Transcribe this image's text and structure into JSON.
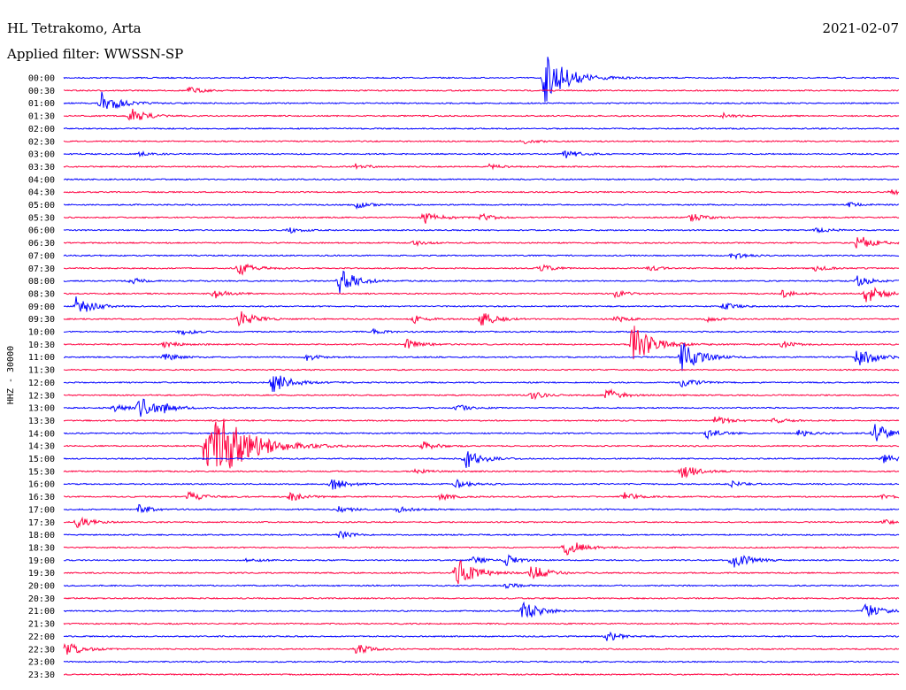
{
  "header": {
    "station": "HL Tetrakomo, Arta",
    "date": "2021-02-07",
    "filter": "Applied filter: WWSSN-SP"
  },
  "chart_data": {
    "type": "line",
    "subtype": "helicorder",
    "ylabel": "HHZ - 30000",
    "colors": [
      "#0000ff",
      "#ff0040"
    ],
    "rows": [
      {
        "label": "00:00",
        "events": [
          [
            0.575,
            30
          ]
        ]
      },
      {
        "label": "00:30",
        "events": [
          [
            0.15,
            4
          ]
        ]
      },
      {
        "label": "01:00",
        "events": [
          [
            0.045,
            14
          ]
        ]
      },
      {
        "label": "01:30",
        "events": [
          [
            0.08,
            9
          ],
          [
            0.79,
            3
          ]
        ]
      },
      {
        "label": "02:00",
        "events": []
      },
      {
        "label": "02:30",
        "events": [
          [
            0.55,
            3
          ]
        ]
      },
      {
        "label": "03:00",
        "events": [
          [
            0.09,
            3
          ],
          [
            0.6,
            5
          ]
        ]
      },
      {
        "label": "03:30",
        "events": [
          [
            0.35,
            4
          ],
          [
            0.51,
            3
          ]
        ]
      },
      {
        "label": "04:00",
        "events": []
      },
      {
        "label": "04:30",
        "events": [
          [
            0.99,
            3
          ]
        ]
      },
      {
        "label": "05:00",
        "events": [
          [
            0.35,
            4
          ],
          [
            0.94,
            3
          ]
        ]
      },
      {
        "label": "05:30",
        "events": [
          [
            0.43,
            8
          ],
          [
            0.5,
            4
          ],
          [
            0.75,
            5
          ]
        ]
      },
      {
        "label": "06:00",
        "events": [
          [
            0.27,
            3
          ],
          [
            0.9,
            4
          ]
        ]
      },
      {
        "label": "06:30",
        "events": [
          [
            0.42,
            3
          ],
          [
            0.95,
            10
          ]
        ]
      },
      {
        "label": "07:00",
        "events": [
          [
            0.8,
            4
          ]
        ]
      },
      {
        "label": "07:30",
        "events": [
          [
            0.21,
            8
          ],
          [
            0.57,
            4
          ],
          [
            0.7,
            3
          ],
          [
            0.9,
            3
          ]
        ]
      },
      {
        "label": "08:00",
        "events": [
          [
            0.08,
            4
          ],
          [
            0.33,
            14
          ],
          [
            0.95,
            6
          ]
        ]
      },
      {
        "label": "08:30",
        "events": [
          [
            0.18,
            6
          ],
          [
            0.66,
            4
          ],
          [
            0.86,
            4
          ],
          [
            0.96,
            12
          ]
        ]
      },
      {
        "label": "09:00",
        "events": [
          [
            0.015,
            12
          ],
          [
            0.79,
            4
          ]
        ]
      },
      {
        "label": "09:30",
        "events": [
          [
            0.21,
            10
          ],
          [
            0.42,
            5
          ],
          [
            0.5,
            9
          ],
          [
            0.66,
            4
          ],
          [
            0.77,
            3
          ]
        ]
      },
      {
        "label": "10:00",
        "events": [
          [
            0.14,
            4
          ],
          [
            0.37,
            3
          ]
        ]
      },
      {
        "label": "10:30",
        "events": [
          [
            0.12,
            4
          ],
          [
            0.41,
            6
          ],
          [
            0.68,
            24
          ],
          [
            0.86,
            4
          ]
        ]
      },
      {
        "label": "11:00",
        "events": [
          [
            0.12,
            5
          ],
          [
            0.29,
            4
          ],
          [
            0.74,
            18
          ],
          [
            0.95,
            14
          ]
        ]
      },
      {
        "label": "11:30",
        "events": []
      },
      {
        "label": "12:00",
        "events": [
          [
            0.25,
            14
          ],
          [
            0.74,
            6
          ]
        ]
      },
      {
        "label": "12:30",
        "events": [
          [
            0.56,
            5
          ],
          [
            0.65,
            8
          ]
        ]
      },
      {
        "label": "13:00",
        "events": [
          [
            0.06,
            4
          ],
          [
            0.09,
            14
          ],
          [
            0.12,
            4
          ],
          [
            0.47,
            4
          ]
        ]
      },
      {
        "label": "13:30",
        "events": [
          [
            0.78,
            5
          ],
          [
            0.85,
            3
          ]
        ]
      },
      {
        "label": "14:00",
        "events": [
          [
            0.77,
            6
          ],
          [
            0.88,
            4
          ],
          [
            0.97,
            12
          ]
        ]
      },
      {
        "label": "14:30",
        "events": [
          [
            0.17,
            60
          ],
          [
            0.43,
            5
          ]
        ]
      },
      {
        "label": "15:00",
        "events": [
          [
            0.48,
            12
          ],
          [
            0.98,
            6
          ]
        ]
      },
      {
        "label": "15:30",
        "events": [
          [
            0.42,
            3
          ],
          [
            0.74,
            9
          ]
        ]
      },
      {
        "label": "16:00",
        "events": [
          [
            0.32,
            8
          ],
          [
            0.47,
            5
          ],
          [
            0.8,
            3
          ]
        ]
      },
      {
        "label": "16:30",
        "events": [
          [
            0.15,
            6
          ],
          [
            0.27,
            6
          ],
          [
            0.45,
            4
          ],
          [
            0.67,
            5
          ],
          [
            0.98,
            4
          ]
        ]
      },
      {
        "label": "17:00",
        "events": [
          [
            0.09,
            5
          ],
          [
            0.33,
            4
          ],
          [
            0.4,
            4
          ]
        ]
      },
      {
        "label": "17:30",
        "events": [
          [
            0.015,
            7
          ],
          [
            0.98,
            3
          ]
        ]
      },
      {
        "label": "18:00",
        "events": [
          [
            0.33,
            4
          ]
        ]
      },
      {
        "label": "18:30",
        "events": [
          [
            0.6,
            12
          ]
        ]
      },
      {
        "label": "19:00",
        "events": [
          [
            0.22,
            3
          ],
          [
            0.49,
            4
          ],
          [
            0.53,
            6
          ],
          [
            0.8,
            12
          ]
        ]
      },
      {
        "label": "19:30",
        "events": [
          [
            0.47,
            18
          ],
          [
            0.56,
            10
          ]
        ]
      },
      {
        "label": "20:00",
        "events": [
          [
            0.53,
            3
          ]
        ]
      },
      {
        "label": "20:30",
        "events": []
      },
      {
        "label": "21:00",
        "events": [
          [
            0.55,
            12
          ],
          [
            0.96,
            9
          ]
        ]
      },
      {
        "label": "21:30",
        "events": []
      },
      {
        "label": "22:00",
        "events": [
          [
            0.65,
            6
          ]
        ]
      },
      {
        "label": "22:30",
        "events": [
          [
            0.002,
            10
          ],
          [
            0.35,
            6
          ]
        ]
      },
      {
        "label": "23:00",
        "events": []
      },
      {
        "label": "23:30",
        "events": []
      }
    ]
  }
}
